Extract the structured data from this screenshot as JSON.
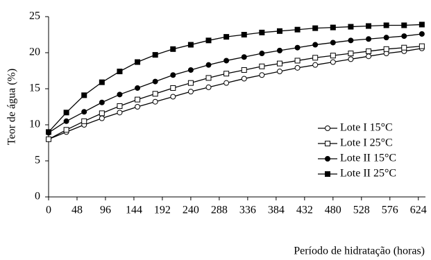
{
  "chart_data": {
    "type": "line",
    "x_label": "Período de hidratação (horas)",
    "y_label": "Teor de água (%)",
    "x": [
      0,
      30,
      60,
      90,
      120,
      150,
      180,
      210,
      240,
      270,
      300,
      330,
      360,
      390,
      420,
      450,
      480,
      510,
      540,
      570,
      600,
      630
    ],
    "series": [
      {
        "name": "Lote I 15°C",
        "color": "#000000",
        "marker": "open-circle",
        "values": [
          8.0,
          9.0,
          10.0,
          10.9,
          11.7,
          12.5,
          13.2,
          13.9,
          14.6,
          15.2,
          15.8,
          16.4,
          16.9,
          17.4,
          17.9,
          18.3,
          18.7,
          19.1,
          19.5,
          19.9,
          20.2,
          20.6
        ]
      },
      {
        "name": "Lote I 25°C",
        "color": "#000000",
        "marker": "open-square",
        "values": [
          8.0,
          9.3,
          10.5,
          11.6,
          12.6,
          13.5,
          14.3,
          15.1,
          15.8,
          16.5,
          17.1,
          17.6,
          18.1,
          18.5,
          18.9,
          19.3,
          19.6,
          19.9,
          20.2,
          20.5,
          20.7,
          20.9
        ]
      },
      {
        "name": "Lote II 15°C",
        "color": "#000000",
        "marker": "filled-circle",
        "values": [
          8.9,
          10.5,
          11.8,
          13.1,
          14.2,
          15.1,
          16.0,
          16.9,
          17.6,
          18.3,
          18.9,
          19.4,
          19.9,
          20.3,
          20.7,
          21.1,
          21.4,
          21.7,
          21.9,
          22.1,
          22.3,
          22.6
        ]
      },
      {
        "name": "Lote II 25°C",
        "color": "#000000",
        "marker": "filled-square",
        "values": [
          9.0,
          11.7,
          14.1,
          15.9,
          17.4,
          18.7,
          19.7,
          20.5,
          21.1,
          21.7,
          22.2,
          22.5,
          22.8,
          23.0,
          23.2,
          23.4,
          23.5,
          23.6,
          23.7,
          23.8,
          23.8,
          23.9
        ]
      }
    ],
    "xlim": [
      0,
      636
    ],
    "xticks": [
      0,
      48,
      96,
      144,
      192,
      240,
      288,
      336,
      384,
      432,
      480,
      528,
      576,
      624
    ],
    "ylim": [
      0,
      25
    ],
    "yticks": [
      0,
      5,
      10,
      15,
      20,
      25
    ],
    "legend": "right"
  }
}
